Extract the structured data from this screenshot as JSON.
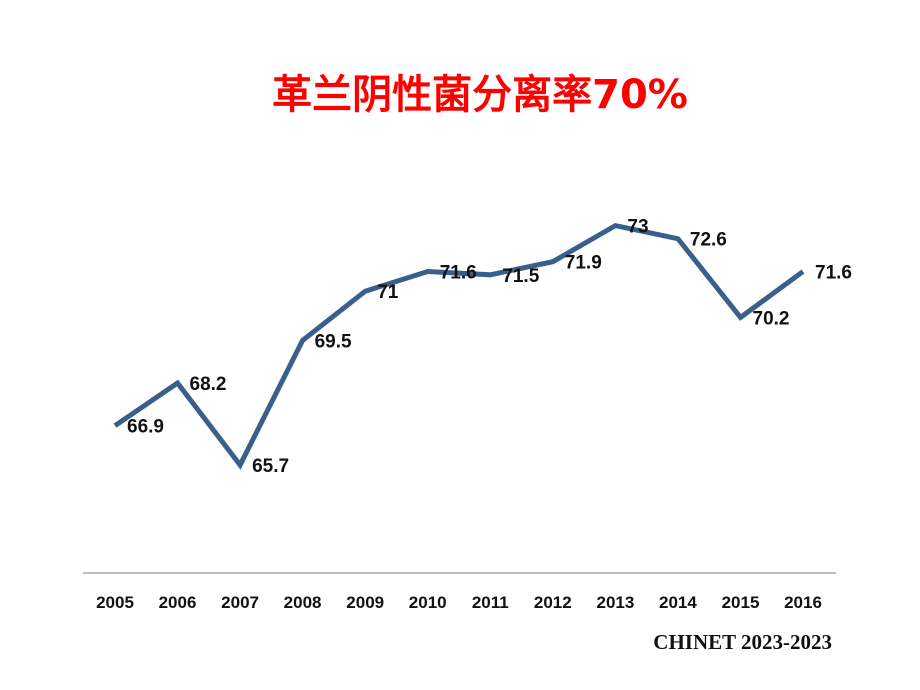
{
  "title": "革兰阴性菌分离率70%",
  "source_note": "CHINET 2023-2023",
  "chart_data": {
    "type": "line",
    "title": "革兰阴性菌分离率70%",
    "categories": [
      "2005",
      "2006",
      "2007",
      "2008",
      "2009",
      "2010",
      "2011",
      "2012",
      "2013",
      "2014",
      "2015",
      "2016"
    ],
    "series": [
      {
        "values": [
          66.9,
          68.2,
          65.7,
          69.5,
          71,
          71.6,
          71.5,
          71.9,
          73,
          72.6,
          70.2,
          71.6
        ]
      }
    ],
    "data_labels": [
      "66.9",
      "68.2",
      "65.7",
      "69.5",
      "71",
      "71.6",
      "71.5",
      "71.9",
      "73",
      "72.6",
      "70.2",
      "71.6"
    ],
    "line_color": "#3b5f8c",
    "axis_color": "#aaaaaa",
    "title_color": "#ff0000",
    "ylim": [
      62.5,
      75
    ],
    "grid": false,
    "y_axis_visible": false,
    "legend": "none"
  }
}
